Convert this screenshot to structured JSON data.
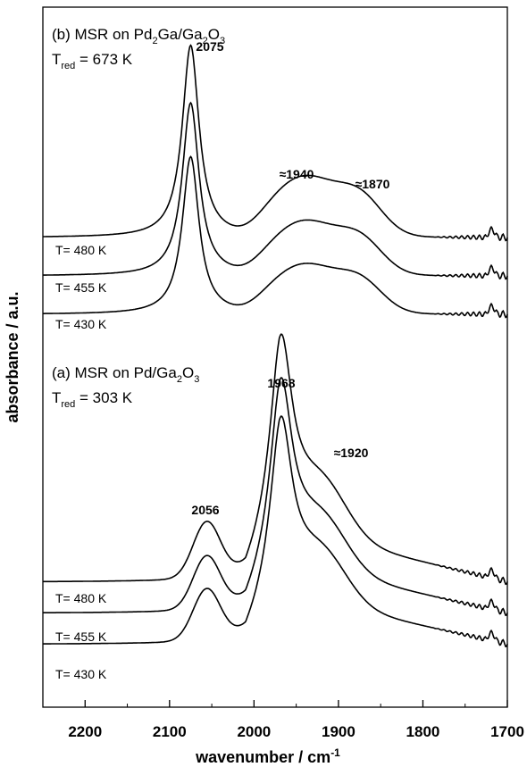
{
  "chart_data": {
    "type": "line",
    "xlabel_main": "wavenumber / cm",
    "xlabel_sup": "-1",
    "ylabel": "absorbance / a.u.",
    "x_range": [
      2250,
      1700
    ],
    "x_reversed": true,
    "xticks": [
      2200,
      2100,
      2000,
      1900,
      1800,
      1700
    ],
    "y_ticks_shown": false,
    "panels": [
      {
        "id": "b",
        "title": {
          "prefix": "(b) MSR on Pd",
          "sub1": "2",
          "mid": "Ga/Ga",
          "sub2": "2",
          "mid2": "O",
          "sub3": "3"
        },
        "tred": {
          "base": "T",
          "sub": "red",
          "rest": " = 673 K"
        },
        "peaks": [
          {
            "label": "2075",
            "x": 2075
          },
          {
            "label": "≈1940",
            "x": 1940
          },
          {
            "label": "≈1870",
            "x": 1870
          }
        ],
        "features": [
          {
            "x": 2075,
            "w": 12,
            "h": 1.0
          },
          {
            "x": 1940,
            "w": 42,
            "h": 0.31
          },
          {
            "x": 1872,
            "w": 26,
            "h": 0.16
          }
        ],
        "offset_below_peak": 0.085,
        "dip": {
          "x": 2010,
          "w": 20,
          "d": 0.04
        },
        "series": [
          {
            "name": "T= 480 K",
            "base": 0.0,
            "scale": 1.0
          },
          {
            "name": "T= 455 K",
            "base": -0.2,
            "scale": 0.9
          },
          {
            "name": "T= 430 K",
            "base": -0.4,
            "scale": 0.82
          }
        ]
      },
      {
        "id": "a",
        "title": {
          "prefix": "(a) MSR on Pd/Ga",
          "sub1": "2",
          "mid": "O",
          "sub2": "3",
          "mid2": "",
          "sub3": ""
        },
        "tred": {
          "base": "T",
          "sub": "red",
          "rest": " = 303 K"
        },
        "peaks": [
          {
            "label": "2056",
            "x": 2056
          },
          {
            "label": "1968",
            "x": 1968
          },
          {
            "label": "≈1920",
            "x": 1920
          }
        ],
        "features": [
          {
            "x": 2056,
            "w": 16,
            "h": 0.3
          },
          {
            "x": 1968,
            "w": 16,
            "h": 1.0
          },
          {
            "x": 1920,
            "w": 30,
            "h": 0.28
          }
        ],
        "slope": {
          "start": 2010,
          "amount": 0.32
        },
        "series": [
          {
            "name": "T= 480 K",
            "base": 0.0,
            "scale": 1.0
          },
          {
            "name": "T= 455 K",
            "base": -0.17,
            "scale": 0.95
          },
          {
            "name": "T= 430 K",
            "base": -0.34,
            "scale": 0.92
          }
        ]
      }
    ]
  }
}
